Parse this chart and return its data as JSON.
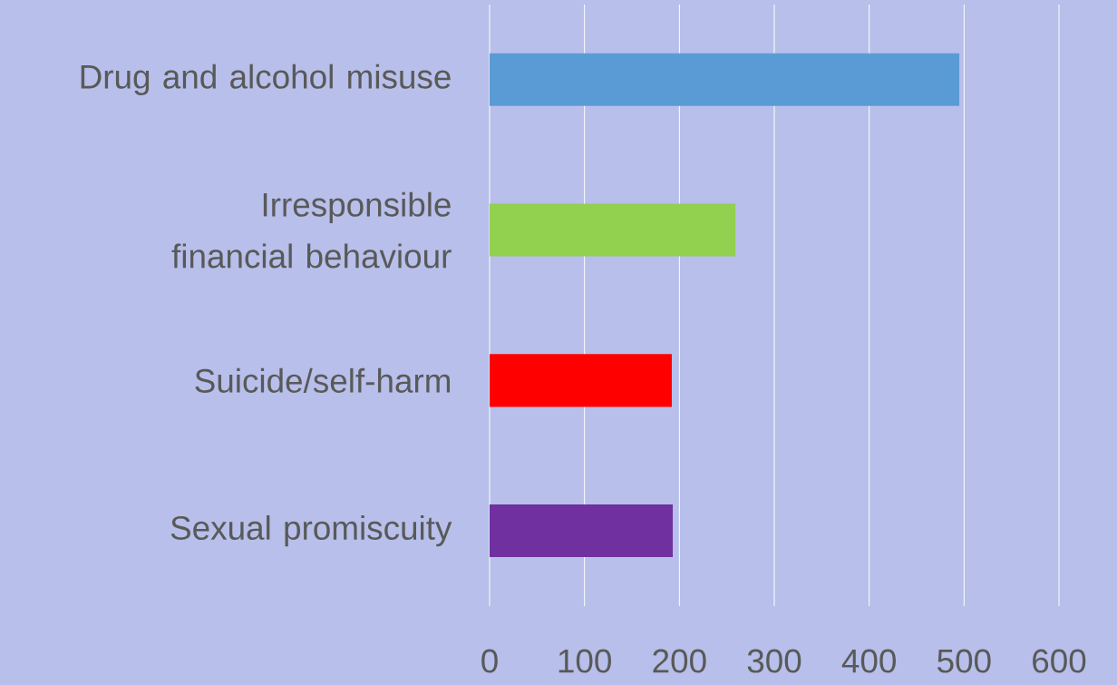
{
  "chart_data": {
    "type": "bar",
    "orientation": "horizontal",
    "categories": [
      "Drug and alcohol misuse",
      "Irresponsible financial behaviour",
      "Suicide/self-harm",
      "Sexual promiscuity"
    ],
    "values": [
      495,
      259,
      192,
      193
    ],
    "colors": [
      "#5b9bd5",
      "#92d050",
      "#ff0000",
      "#7030a0"
    ],
    "xlim": [
      0,
      600
    ],
    "xticks": [
      0,
      100,
      200,
      300,
      400,
      500,
      600
    ],
    "grid": "x"
  }
}
